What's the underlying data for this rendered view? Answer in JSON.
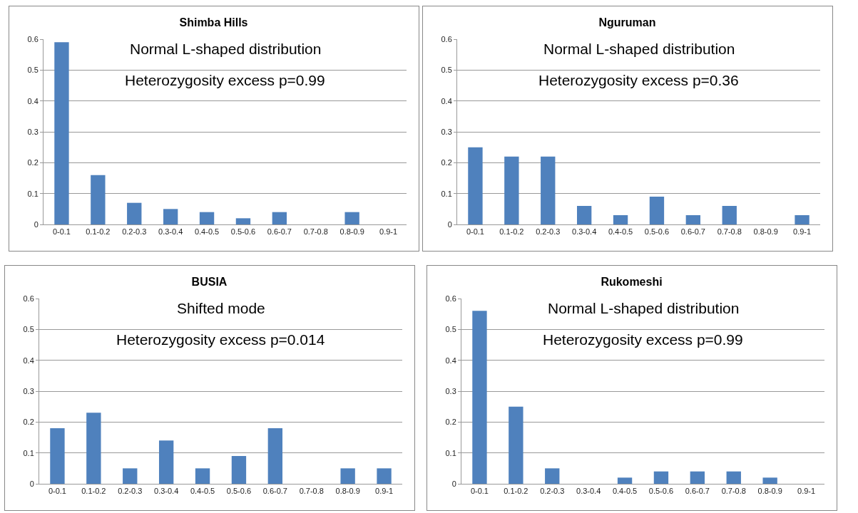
{
  "chart_data": [
    {
      "type": "bar",
      "title": "Shimba Hills",
      "categories": [
        "0-0.1",
        "0.1-0.2",
        "0.2-0.3",
        "0.3-0.4",
        "0.4-0.5",
        "0.5-0.6",
        "0.6-0.7",
        "0.7-0.8",
        "0.8-0.9",
        "0.9-1"
      ],
      "values": [
        0.59,
        0.16,
        0.07,
        0.05,
        0.04,
        0.02,
        0.04,
        0,
        0.04,
        0
      ],
      "color": "#4f81bd",
      "ylim": [
        0,
        0.6
      ],
      "yticks": [
        0,
        0.1,
        0.2,
        0.3,
        0.4,
        0.5,
        0.6
      ],
      "grid": "y",
      "annotations": [
        "Normal L-shaped distribution",
        "Heterozygosity excess p=0.99"
      ]
    },
    {
      "type": "bar",
      "title": "Nguruman",
      "categories": [
        "0-0.1",
        "0.1-0.2",
        "0.2-0.3",
        "0.3-0.4",
        "0.4-0.5",
        "0.5-0.6",
        "0.6-0.7",
        "0.7-0.8",
        "0.8-0.9",
        "0.9-1"
      ],
      "values": [
        0.25,
        0.22,
        0.22,
        0.06,
        0.03,
        0.09,
        0.03,
        0.06,
        0,
        0.03
      ],
      "color": "#4f81bd",
      "ylim": [
        0,
        0.6
      ],
      "yticks": [
        0,
        0.1,
        0.2,
        0.3,
        0.4,
        0.5,
        0.6
      ],
      "grid": "y",
      "annotations": [
        "Normal L-shaped distribution",
        "Heterozygosity excess p=0.36"
      ]
    },
    {
      "type": "bar",
      "title": "BUSIA",
      "categories": [
        "0-0.1",
        "0.1-0.2",
        "0.2-0.3",
        "0.3-0.4",
        "0.4-0.5",
        "0.5-0.6",
        "0.6-0.7",
        "0.7-0.8",
        "0.8-0.9",
        "0.9-1"
      ],
      "values": [
        0.18,
        0.23,
        0.05,
        0.14,
        0.05,
        0.09,
        0.18,
        0,
        0.05,
        0.05
      ],
      "color": "#4f81bd",
      "ylim": [
        0,
        0.6
      ],
      "yticks": [
        0,
        0.1,
        0.2,
        0.3,
        0.4,
        0.5,
        0.6
      ],
      "grid": "y",
      "annotations": [
        "Shifted mode",
        "Heterozygosity excess p=0.014"
      ]
    },
    {
      "type": "bar",
      "title": "Rukomeshi",
      "categories": [
        "0-0.1",
        "0.1-0.2",
        "0.2-0.3",
        "0.3-0.4",
        "0.4-0.5",
        "0.5-0.6",
        "0.6-0.7",
        "0.7-0.8",
        "0.8-0.9",
        "0.9-1"
      ],
      "values": [
        0.56,
        0.25,
        0.05,
        0,
        0.02,
        0.04,
        0.04,
        0.04,
        0.02,
        0
      ],
      "color": "#4f81bd",
      "ylim": [
        0,
        0.6
      ],
      "yticks": [
        0,
        0.1,
        0.2,
        0.3,
        0.4,
        0.5,
        0.6
      ],
      "grid": "y",
      "annotations": [
        "Normal L-shaped distribution",
        "Heterozygosity excess p=0.99"
      ]
    }
  ]
}
